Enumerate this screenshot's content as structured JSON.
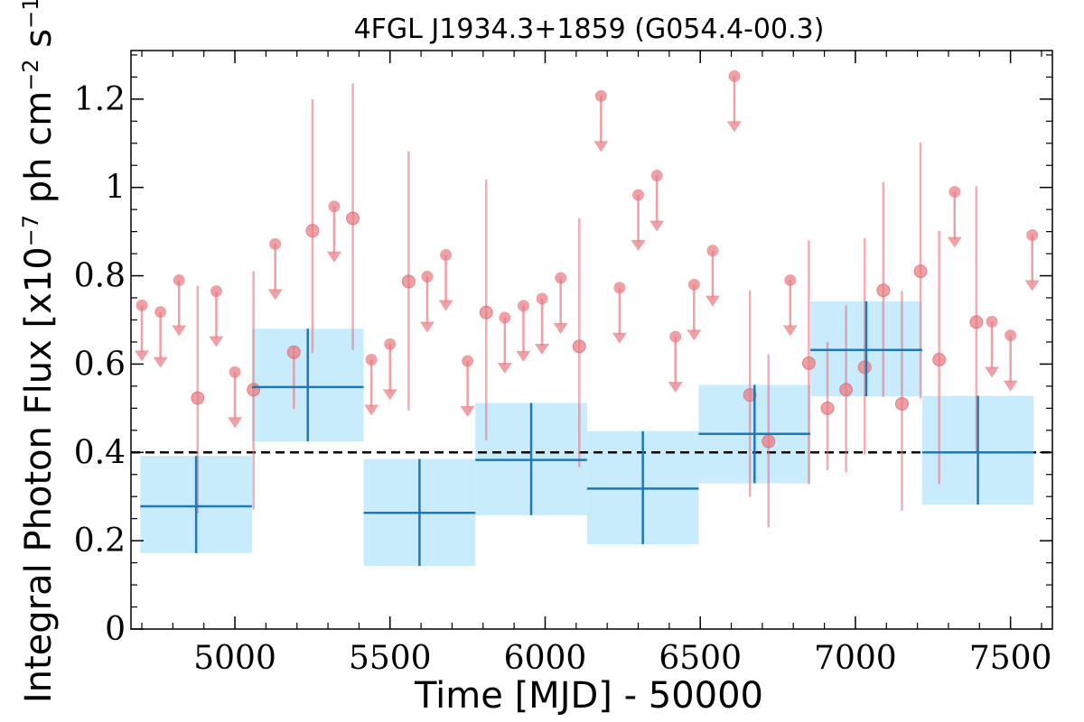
{
  "chart_data": {
    "type": "scatter",
    "title": "4FGL J1934.3+1859 (G054.4-00.3)",
    "xlabel": "Time [MJD] - 50000",
    "ylabel": {
      "prefix": "Integral Photon Flux [x10",
      "exp1": "−7",
      "mid": " ph cm",
      "exp2": "−2",
      "mid2": " s",
      "exp3": "−1",
      "suffix": "]"
    },
    "xlim": [
      4665,
      7635
    ],
    "ylim": [
      0,
      1.31
    ],
    "xticks": [
      5000,
      5500,
      6000,
      6500,
      7000,
      7500
    ],
    "yticks": [
      {
        "v": 0,
        "label": "0"
      },
      {
        "v": 0.2,
        "label": "0.2"
      },
      {
        "v": 0.4,
        "label": "0.4"
      },
      {
        "v": 0.6,
        "label": "0.6"
      },
      {
        "v": 0.8,
        "label": "0.8"
      },
      {
        "v": 1.0,
        "label": "1"
      },
      {
        "v": 1.2,
        "label": "1.2"
      }
    ],
    "reference_line": {
      "y": 0.4,
      "style": "dashed",
      "color": "#000000"
    },
    "colors": {
      "fine_bins": "#e8777f",
      "wide_bins_box": "#c8ecfc",
      "wide_bins_line": "#1f78b4"
    },
    "series": [
      {
        "kind": "upper_limits",
        "points": [
          {
            "x": 4700,
            "y": 0.733
          },
          {
            "x": 4760,
            "y": 0.718
          },
          {
            "x": 4820,
            "y": 0.79
          },
          {
            "x": 4940,
            "y": 0.765
          },
          {
            "x": 5000,
            "y": 0.582
          },
          {
            "x": 5130,
            "y": 0.872
          },
          {
            "x": 5320,
            "y": 0.957
          },
          {
            "x": 5440,
            "y": 0.61
          },
          {
            "x": 5500,
            "y": 0.645
          },
          {
            "x": 5620,
            "y": 0.798
          },
          {
            "x": 5680,
            "y": 0.847
          },
          {
            "x": 5750,
            "y": 0.607
          },
          {
            "x": 5870,
            "y": 0.705
          },
          {
            "x": 5930,
            "y": 0.732
          },
          {
            "x": 5990,
            "y": 0.748
          },
          {
            "x": 6050,
            "y": 0.795
          },
          {
            "x": 6180,
            "y": 1.207
          },
          {
            "x": 6240,
            "y": 0.773
          },
          {
            "x": 6300,
            "y": 0.983
          },
          {
            "x": 6360,
            "y": 1.027
          },
          {
            "x": 6420,
            "y": 0.662
          },
          {
            "x": 6480,
            "y": 0.78
          },
          {
            "x": 6540,
            "y": 0.857
          },
          {
            "x": 6610,
            "y": 1.252
          },
          {
            "x": 6790,
            "y": 0.79
          },
          {
            "x": 7320,
            "y": 0.99
          },
          {
            "x": 7440,
            "y": 0.696
          },
          {
            "x": 7500,
            "y": 0.665
          },
          {
            "x": 7570,
            "y": 0.892
          }
        ]
      },
      {
        "kind": "measurements",
        "points": [
          {
            "x": 4880,
            "y": 0.523,
            "lo": 0.262,
            "hi": 0.777
          },
          {
            "x": 5060,
            "y": 0.542,
            "lo": 0.27,
            "hi": 0.81
          },
          {
            "x": 5190,
            "y": 0.627,
            "lo": 0.498,
            "hi": 0.64
          },
          {
            "x": 5250,
            "y": 0.902,
            "lo": 0.625,
            "hi": 1.2
          },
          {
            "x": 5380,
            "y": 0.93,
            "lo": 0.632,
            "hi": 1.235
          },
          {
            "x": 5560,
            "y": 0.787,
            "lo": 0.495,
            "hi": 1.082
          },
          {
            "x": 5810,
            "y": 0.717,
            "lo": 0.428,
            "hi": 1.018
          },
          {
            "x": 6110,
            "y": 0.64,
            "lo": 0.367,
            "hi": 0.93
          },
          {
            "x": 6660,
            "y": 0.53,
            "lo": 0.3,
            "hi": 0.767
          },
          {
            "x": 6720,
            "y": 0.425,
            "lo": 0.23,
            "hi": 0.622
          },
          {
            "x": 6850,
            "y": 0.602,
            "lo": 0.328,
            "hi": 0.88
          },
          {
            "x": 6910,
            "y": 0.5,
            "lo": 0.36,
            "hi": 0.65
          },
          {
            "x": 6970,
            "y": 0.542,
            "lo": 0.355,
            "hi": 0.733
          },
          {
            "x": 7030,
            "y": 0.593,
            "lo": 0.395,
            "hi": 0.885
          },
          {
            "x": 7090,
            "y": 0.767,
            "lo": 0.525,
            "hi": 1.012
          },
          {
            "x": 7150,
            "y": 0.51,
            "lo": 0.268,
            "hi": 0.765
          },
          {
            "x": 7210,
            "y": 0.81,
            "lo": 0.522,
            "hi": 1.102
          },
          {
            "x": 7270,
            "y": 0.61,
            "lo": 0.328,
            "hi": 0.902
          },
          {
            "x": 7390,
            "y": 0.695,
            "lo": 0.4,
            "hi": 1.003
          }
        ]
      },
      {
        "kind": "wide_bins",
        "bins": [
          {
            "x0": 4695,
            "x1": 5055,
            "y": 0.278,
            "lo": 0.172,
            "hi": 0.392
          },
          {
            "x0": 5055,
            "x1": 5415,
            "y": 0.548,
            "lo": 0.425,
            "hi": 0.68
          },
          {
            "x0": 5415,
            "x1": 5775,
            "y": 0.263,
            "lo": 0.143,
            "hi": 0.385
          },
          {
            "x0": 5775,
            "x1": 6135,
            "y": 0.383,
            "lo": 0.258,
            "hi": 0.512
          },
          {
            "x0": 6135,
            "x1": 6495,
            "y": 0.318,
            "lo": 0.192,
            "hi": 0.448
          },
          {
            "x0": 6495,
            "x1": 6855,
            "y": 0.442,
            "lo": 0.33,
            "hi": 0.553
          },
          {
            "x0": 6855,
            "x1": 7215,
            "y": 0.632,
            "lo": 0.527,
            "hi": 0.742
          },
          {
            "x0": 7215,
            "x1": 7575,
            "y": 0.4,
            "lo": 0.282,
            "hi": 0.528
          }
        ]
      }
    ]
  }
}
